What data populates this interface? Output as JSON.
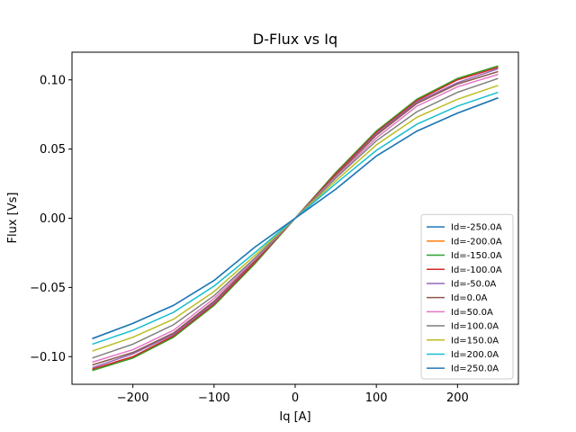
{
  "chart_data": {
    "type": "line",
    "title": "D-Flux vs Iq",
    "xlabel": "Iq [A]",
    "ylabel": "Flux [Vs]",
    "xlim": [
      -275,
      275
    ],
    "ylim": [
      -0.12,
      0.12
    ],
    "xticks": [
      -200,
      -100,
      0,
      100,
      200
    ],
    "xtick_labels": [
      "−200",
      "−100",
      "0",
      "100",
      "200"
    ],
    "yticks": [
      -0.1,
      -0.05,
      0.0,
      0.05,
      0.1
    ],
    "ytick_labels": [
      "−0.10",
      "−0.05",
      "0.00",
      "0.05",
      "0.10"
    ],
    "grid": false,
    "legend_position": "lower-right",
    "x": [
      -250,
      -200,
      -150,
      -100,
      -50,
      0,
      50,
      100,
      150,
      200,
      250
    ],
    "series": [
      {
        "name": "Id=-250.0A",
        "color": "#1f77b4",
        "values": [
          -0.087,
          -0.076,
          -0.063,
          -0.045,
          -0.021,
          0.0,
          0.021,
          0.045,
          0.063,
          0.076,
          0.087
        ]
      },
      {
        "name": "Id=-200.0A",
        "color": "#ff7f0e",
        "values": [
          -0.11,
          -0.101,
          -0.086,
          -0.063,
          -0.033,
          0.0,
          0.033,
          0.063,
          0.086,
          0.101,
          0.11
        ]
      },
      {
        "name": "Id=-150.0A",
        "color": "#2ca02c",
        "values": [
          -0.11,
          -0.101,
          -0.086,
          -0.063,
          -0.033,
          0.0,
          0.033,
          0.063,
          0.086,
          0.101,
          0.11
        ]
      },
      {
        "name": "Id=-100.0A",
        "color": "#d62728",
        "values": [
          -0.109,
          -0.1,
          -0.085,
          -0.062,
          -0.032,
          0.0,
          0.032,
          0.062,
          0.085,
          0.1,
          0.109
        ]
      },
      {
        "name": "Id=-50.0A",
        "color": "#9467bd",
        "values": [
          -0.108,
          -0.098,
          -0.084,
          -0.061,
          -0.031,
          0.0,
          0.031,
          0.061,
          0.084,
          0.098,
          0.108
        ]
      },
      {
        "name": "Id=0.0A",
        "color": "#8c564b",
        "values": [
          -0.106,
          -0.097,
          -0.083,
          -0.06,
          -0.031,
          0.0,
          0.031,
          0.06,
          0.083,
          0.097,
          0.106
        ]
      },
      {
        "name": "Id=50.0A",
        "color": "#e377c2",
        "values": [
          -0.104,
          -0.095,
          -0.081,
          -0.058,
          -0.03,
          0.0,
          0.03,
          0.058,
          0.081,
          0.095,
          0.104
        ]
      },
      {
        "name": "Id=100.0A",
        "color": "#7f7f7f",
        "values": [
          -0.101,
          -0.091,
          -0.077,
          -0.056,
          -0.029,
          0.0,
          0.029,
          0.056,
          0.077,
          0.091,
          0.101
        ]
      },
      {
        "name": "Id=150.0A",
        "color": "#bcbd22",
        "values": [
          -0.096,
          -0.086,
          -0.073,
          -0.053,
          -0.027,
          0.0,
          0.027,
          0.053,
          0.073,
          0.086,
          0.096
        ]
      },
      {
        "name": "Id=200.0A",
        "color": "#17becf",
        "values": [
          -0.091,
          -0.081,
          -0.068,
          -0.049,
          -0.025,
          0.0,
          0.025,
          0.049,
          0.068,
          0.081,
          0.091
        ]
      },
      {
        "name": "Id=250.0A",
        "color": "#1f77b4",
        "values": [
          -0.087,
          -0.076,
          -0.063,
          -0.045,
          -0.021,
          0.0,
          0.021,
          0.045,
          0.063,
          0.076,
          0.087
        ]
      }
    ]
  }
}
